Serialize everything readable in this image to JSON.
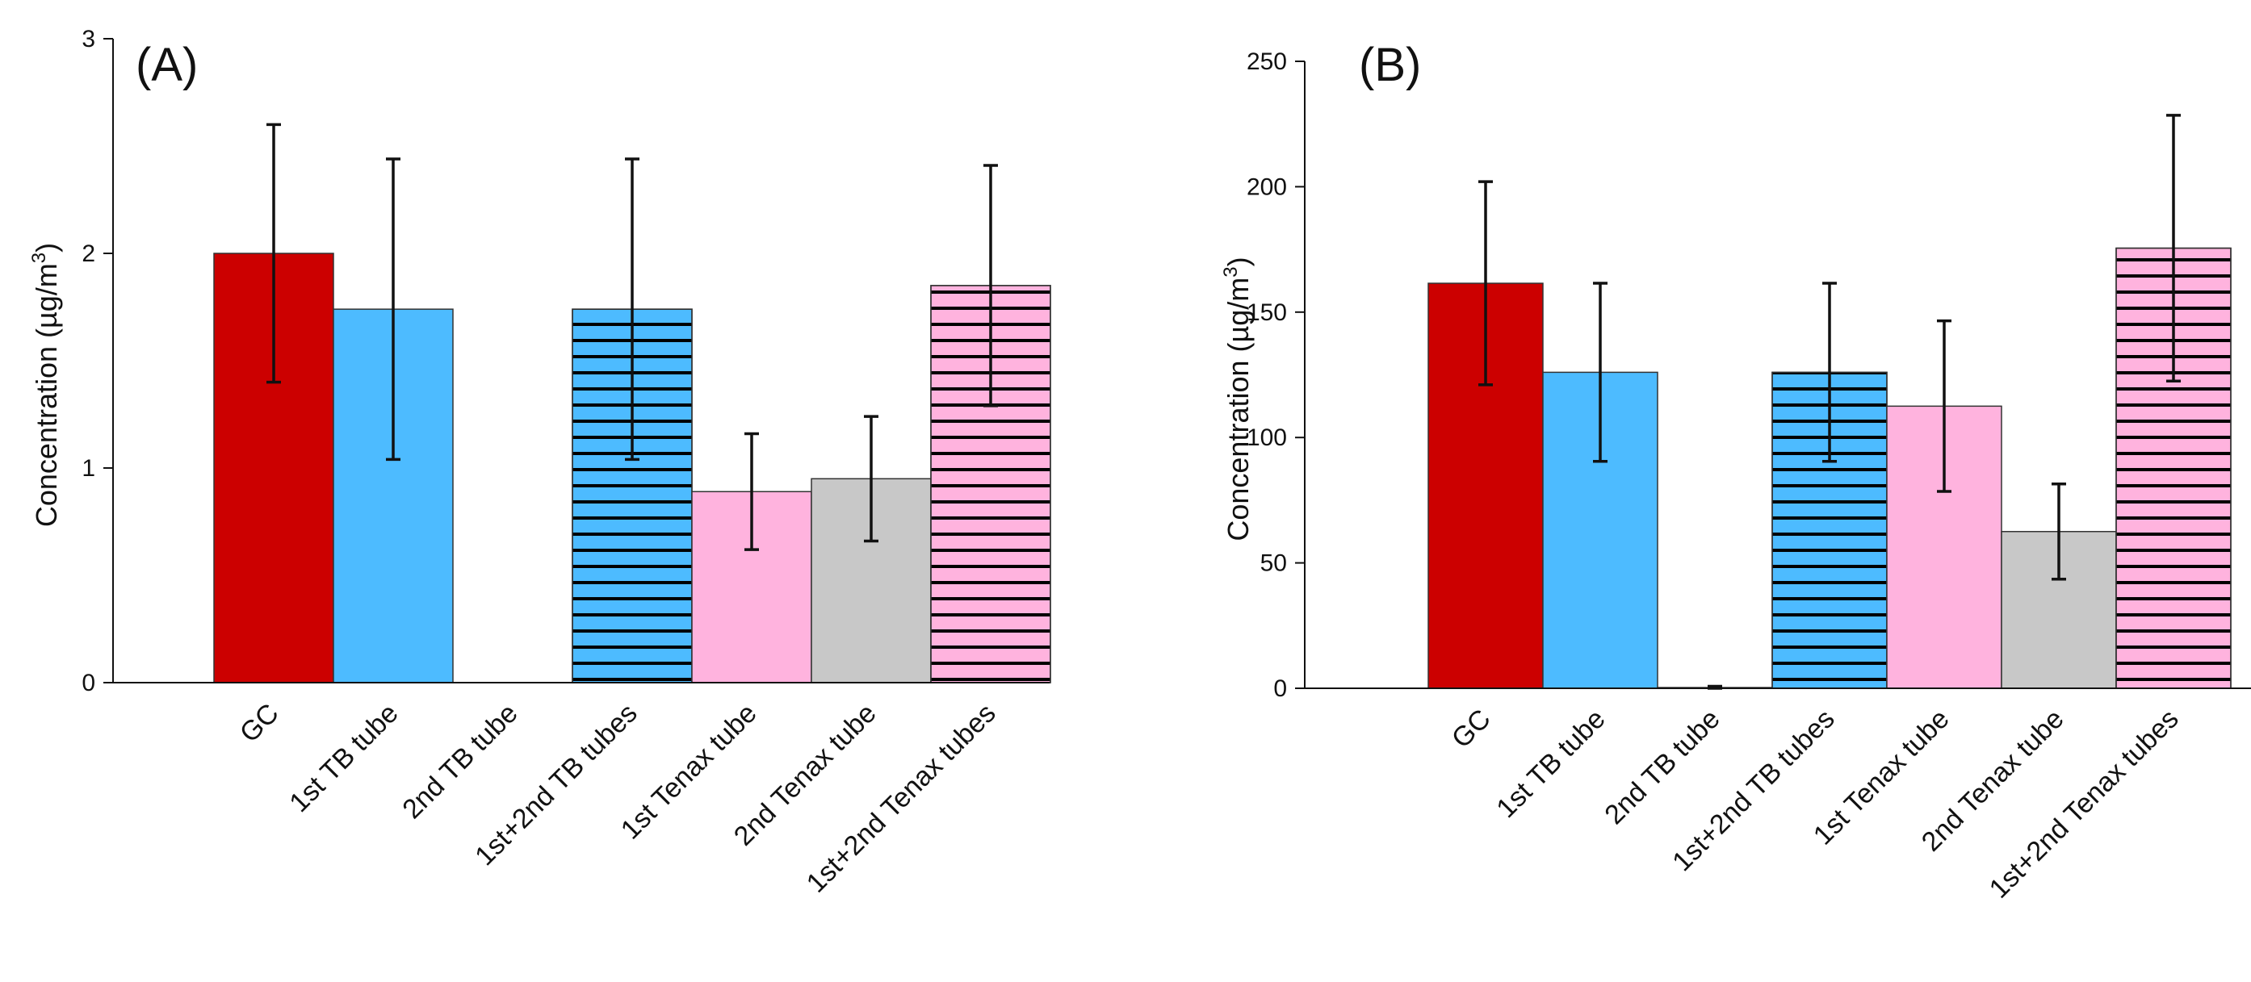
{
  "chart_data": [
    {
      "type": "bar",
      "panel_label": "(A)",
      "title": "",
      "xlabel": "",
      "ylabel": "Concentration (µg/m³)",
      "ylabel_base": "Concentration (µg/m",
      "ylabel_sup": "3",
      "ylabel_close": ")",
      "ylim": [
        0,
        3
      ],
      "yticks": [
        0,
        1,
        2,
        3
      ],
      "grid": false,
      "categories": [
        "GC",
        "1st TB tube",
        "2nd TB tube",
        "1st+2nd TB tubes",
        "1st Tenax tube",
        "2nd Tenax tube",
        "1st+2nd Tenax tubes"
      ],
      "values": [
        2.0,
        1.74,
        0.0,
        1.74,
        0.89,
        0.95,
        1.85
      ],
      "errors": [
        0.6,
        0.7,
        0.0,
        0.7,
        0.27,
        0.29,
        0.56
      ]
    },
    {
      "type": "bar",
      "panel_label": "(B)",
      "title": "",
      "xlabel": "",
      "ylabel": "Concentration (µg/m³)",
      "ylabel_base": "Concentration (µg/m",
      "ylabel_sup": "3",
      "ylabel_close": ")",
      "ylim": [
        0,
        250
      ],
      "yticks": [
        0,
        50,
        100,
        150,
        200,
        250
      ],
      "grid": false,
      "categories": [
        "GC",
        "1st TB tube",
        "2nd TB tube",
        "1st+2nd TB tubes",
        "1st Tenax tube",
        "2nd Tenax tube",
        "1st+2nd Tenax tubes"
      ],
      "values": [
        161.5,
        126.0,
        0.3,
        126.0,
        112.5,
        62.5,
        175.5
      ],
      "errors": [
        40.5,
        35.5,
        0.5,
        35.5,
        34.0,
        19.0,
        53.0
      ]
    }
  ],
  "style": {
    "bar_colors": [
      "#cc0000",
      "#4dbbff",
      "#ffffff",
      "#4dbbff",
      "#ffb3de",
      "#c8c8c8",
      "#ffb3de"
    ],
    "hatched": [
      false,
      false,
      false,
      true,
      false,
      false,
      true
    ],
    "hatch_color": "#000000",
    "bar_edge": "#333333",
    "axis_color": "#111111"
  }
}
